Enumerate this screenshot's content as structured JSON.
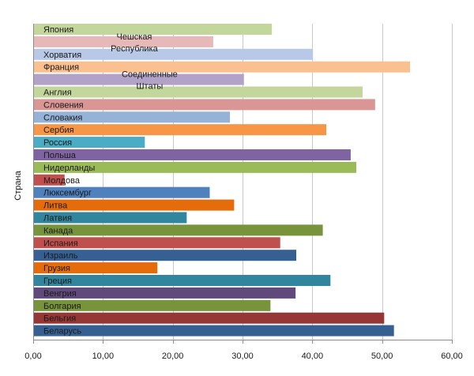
{
  "chart_data": {
    "type": "bar",
    "orientation": "horizontal",
    "ylabel": "Страна",
    "xlabel": "",
    "title": "",
    "xlim": [
      0,
      60
    ],
    "x_ticks": [
      "0,00",
      "10,00",
      "20,00",
      "30,00",
      "40,00",
      "50,00",
      "60,00"
    ],
    "grid": true,
    "legend": "none",
    "categories": [
      "Япония",
      "Чешская Республика",
      "Хорватия",
      "Франция",
      "Соединенные Штаты",
      "Англия",
      "Словения",
      "Словакия",
      "Сербия",
      "Россия",
      "Польша",
      "Нидерланды",
      "Молдова",
      "Люксембург",
      "Литва",
      "Латвия",
      "Канада",
      "Испания",
      "Израиль",
      "Грузия",
      "Греция",
      "Венгрия",
      "Болгария",
      "Бельгия",
      "Беларусь"
    ],
    "values": [
      34.2,
      25.8,
      40.1,
      54.0,
      30.2,
      47.2,
      49.0,
      28.2,
      42.0,
      16.0,
      45.5,
      46.3,
      4.5,
      25.3,
      28.8,
      22.0,
      41.5,
      35.4,
      37.7,
      17.8,
      42.6,
      37.6,
      34.0,
      50.3,
      51.7
    ],
    "colors": [
      "#c3d69b",
      "#e6b9b8",
      "#b7c9e6",
      "#fac090",
      "#b3a2c7",
      "#c3d69b",
      "#d99694",
      "#95b3d7",
      "#f79646",
      "#4bacc6",
      "#8064a2",
      "#9bbb59",
      "#c0504d",
      "#4f81bd",
      "#e46c0a",
      "#31859c",
      "#77933c",
      "#c0504d",
      "#376092",
      "#e46c0a",
      "#31859c",
      "#604a7b",
      "#77933c",
      "#953735",
      "#376092"
    ]
  }
}
